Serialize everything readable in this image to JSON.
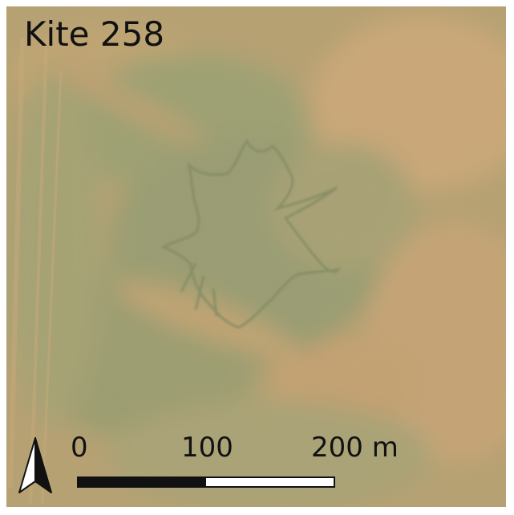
{
  "map": {
    "title": "Kite 258",
    "scale": {
      "start_label": "0",
      "mid_label": "100",
      "end_label": "200 m"
    },
    "north_arrow_icon": "north-arrow-icon",
    "colors": {
      "ground_base": "#b7a06a",
      "ground_light": "#c9a573",
      "vegetation": "#8f9a6e",
      "kite_outline": "#7f8a60"
    }
  }
}
